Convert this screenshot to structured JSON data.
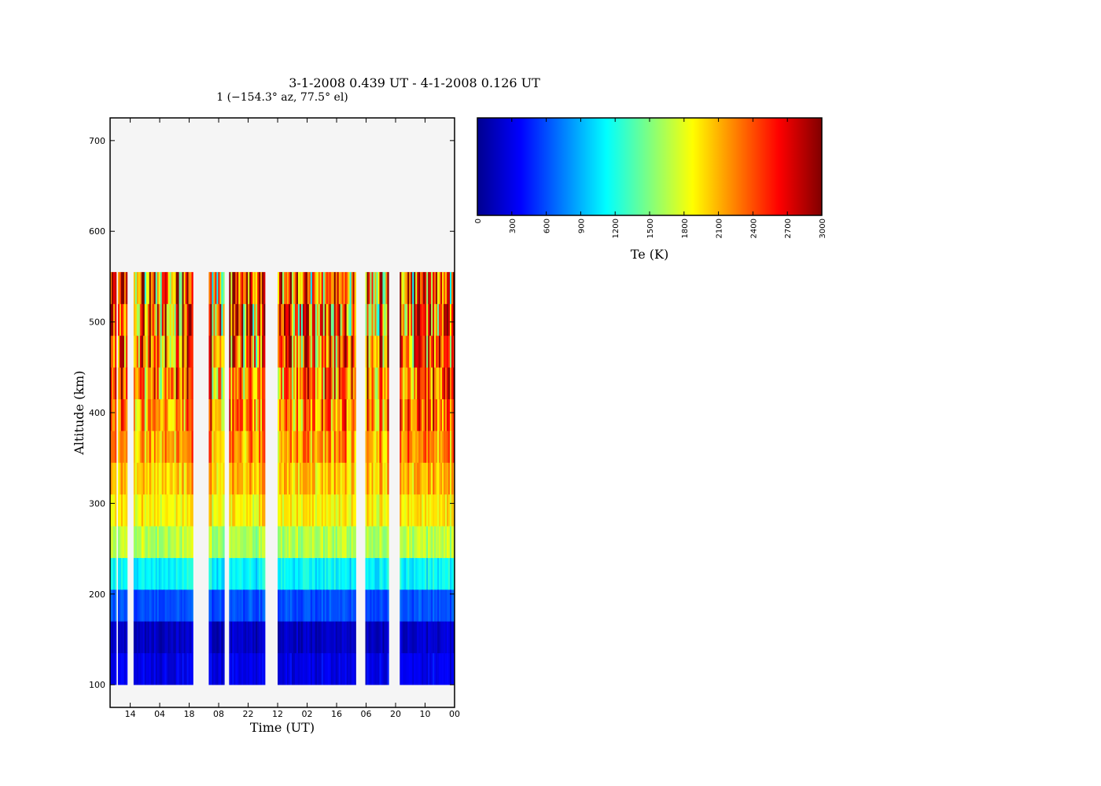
{
  "chart_data": {
    "type": "heatmap",
    "title": "3-1-2008 0.439 UT - 4-1-2008 0.126 UT",
    "subtitle": "1 (−154.3° az, 77.5° el)",
    "xlabel": "Time (UT)",
    "ylabel": "Altitude (km)",
    "x_tick_labels": [
      "14",
      "04",
      "18",
      "08",
      "22",
      "12",
      "02",
      "16",
      "06",
      "20",
      "10",
      "00"
    ],
    "y_ticks": [
      100,
      200,
      300,
      400,
      500,
      600,
      700
    ],
    "ylim": [
      75,
      725
    ],
    "altitude_bins_km": [
      100,
      135,
      170,
      205,
      240,
      275,
      310,
      345,
      380,
      415,
      450,
      485,
      520,
      555
    ],
    "data_gaps": [
      [
        0.015,
        0.02
      ],
      [
        0.05,
        0.065
      ],
      [
        0.24,
        0.285
      ],
      [
        0.33,
        0.345
      ],
      [
        0.45,
        0.485
      ],
      [
        0.71,
        0.74
      ],
      [
        0.805,
        0.84
      ]
    ],
    "colorbar": {
      "label": "Te (K)",
      "range": [
        0,
        3000
      ],
      "ticks": [
        0,
        300,
        600,
        900,
        1200,
        1500,
        1800,
        2100,
        2400,
        2700,
        3000
      ],
      "colormap": [
        "#00008f",
        "#0000ff",
        "#00ffff",
        "#ffff00",
        "#ff0000",
        "#800000"
      ]
    },
    "background_color": "#f5f5f5"
  }
}
